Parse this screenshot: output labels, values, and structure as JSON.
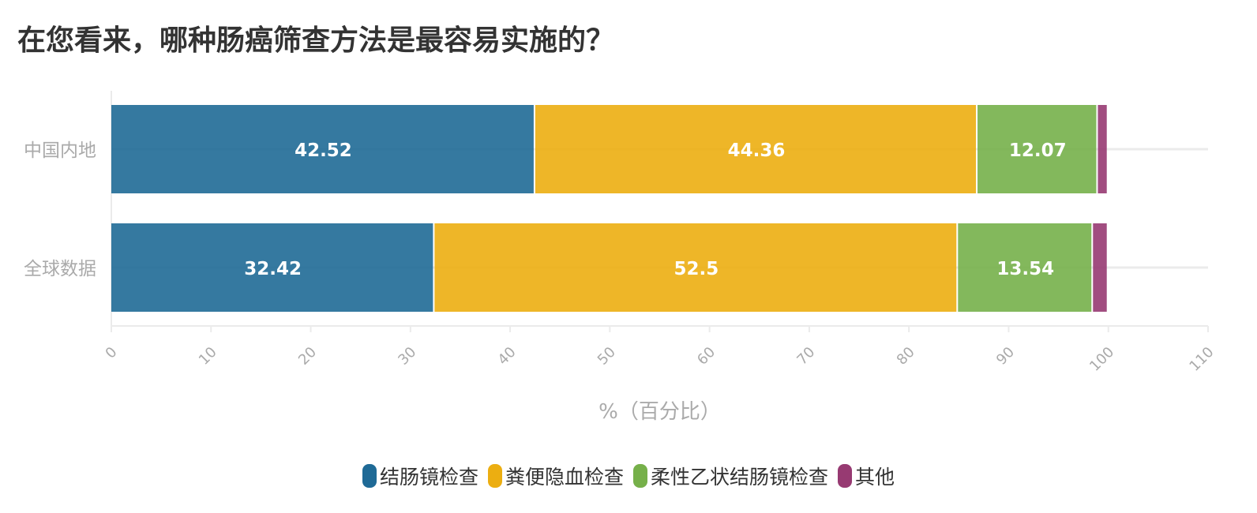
{
  "chart_data": {
    "type": "bar",
    "orientation": "horizontal",
    "stacked": true,
    "title": "在您看来，哪种肠癌筛查方法是最容易实施的？",
    "xlabel": "%（百分比）",
    "ylabel": "",
    "xlim": [
      0,
      110
    ],
    "xticks": [
      0,
      10,
      20,
      30,
      40,
      50,
      60,
      70,
      80,
      90,
      100,
      110
    ],
    "grid": true,
    "legend_position": "bottom",
    "categories": [
      "中国内地",
      "全球数据"
    ],
    "series": [
      {
        "name": "结肠镜检查",
        "color": "#1f6a96",
        "values": [
          42.52,
          32.42
        ],
        "show_labels": true
      },
      {
        "name": "粪便隐血检查",
        "color": "#ecae11",
        "values": [
          44.36,
          52.5
        ],
        "show_labels": true
      },
      {
        "name": "柔性乙状结肠镜检查",
        "color": "#76b04a",
        "values": [
          12.07,
          13.54
        ],
        "show_labels": true
      },
      {
        "name": "其他",
        "color": "#973a72",
        "values": [
          1.05,
          1.54
        ],
        "show_labels": false
      }
    ]
  }
}
